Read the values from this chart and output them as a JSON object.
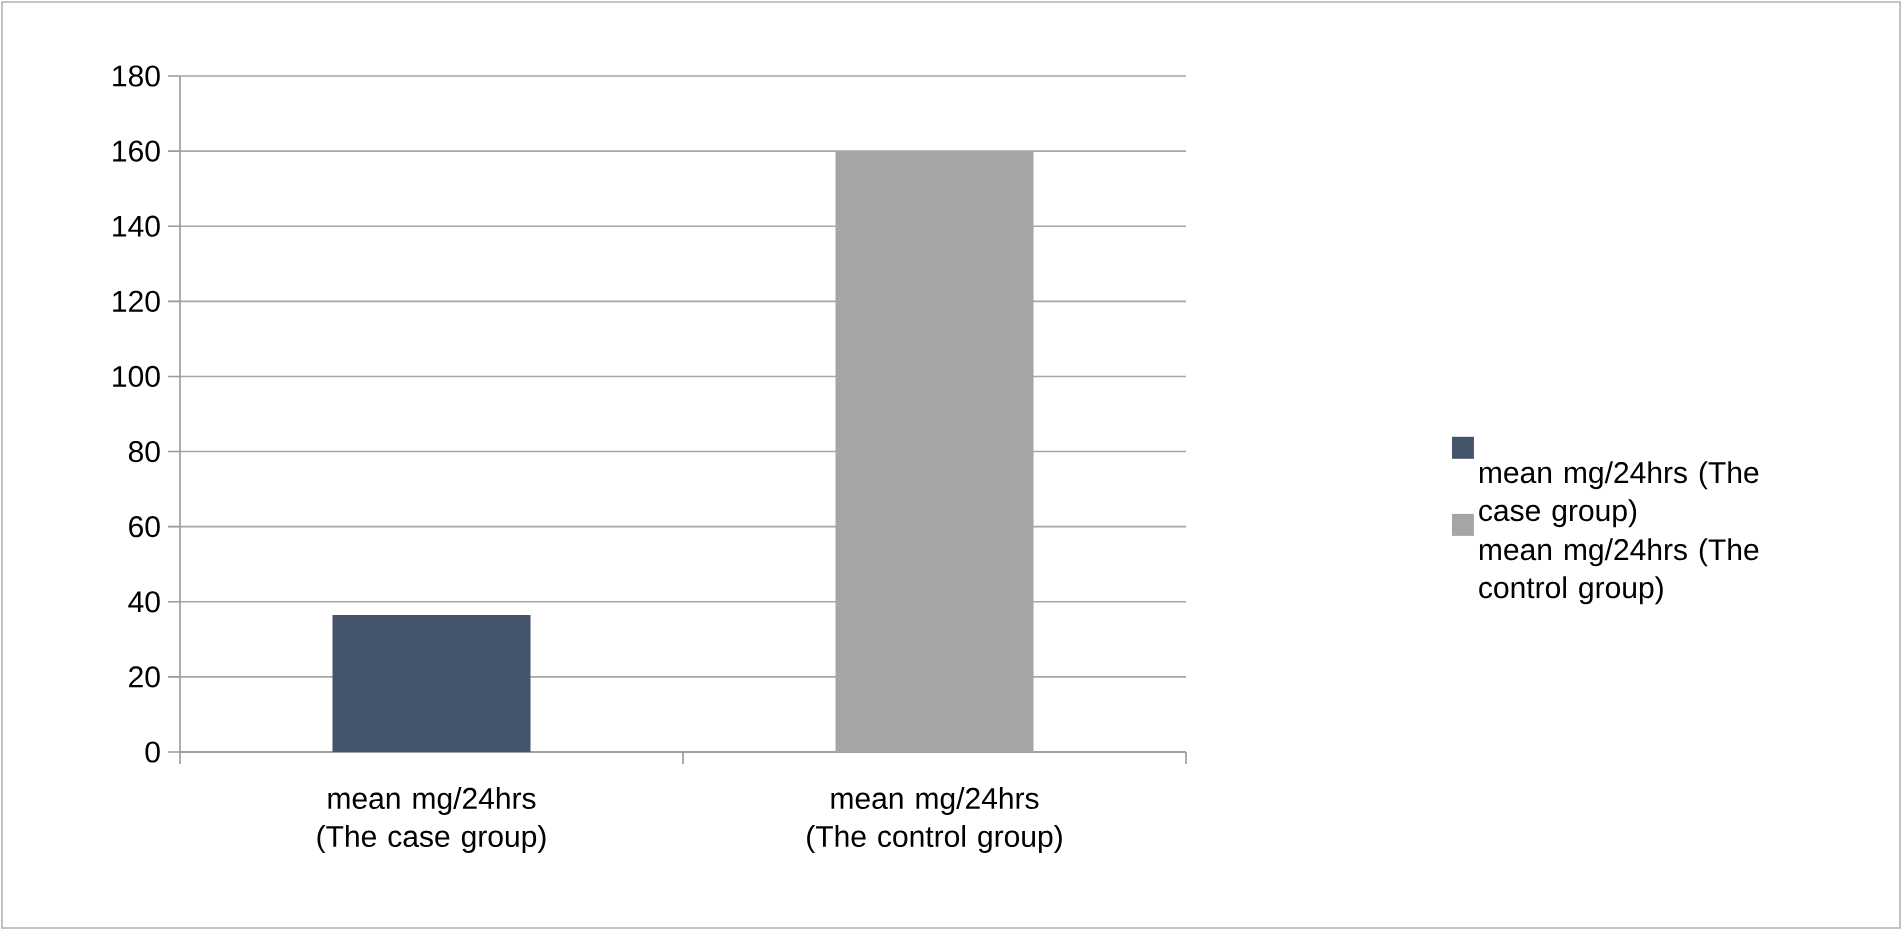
{
  "chart_data": {
    "type": "bar",
    "categories": [
      "mean mg/24hrs (The case group)",
      "mean mg/24hrs (The control group)"
    ],
    "series": [
      {
        "name": "mean mg/24hrs (The case group)",
        "color": "#44546a",
        "values": [
          36.5,
          null
        ]
      },
      {
        "name": "mean mg/24hrs (The control group)",
        "color": "#a5a5a5",
        "values": [
          null,
          160
        ]
      }
    ],
    "ylim": [
      0,
      180
    ],
    "yticks": [
      0,
      20,
      40,
      60,
      80,
      100,
      120,
      140,
      160,
      180
    ],
    "grid": "y",
    "legend": "right"
  }
}
